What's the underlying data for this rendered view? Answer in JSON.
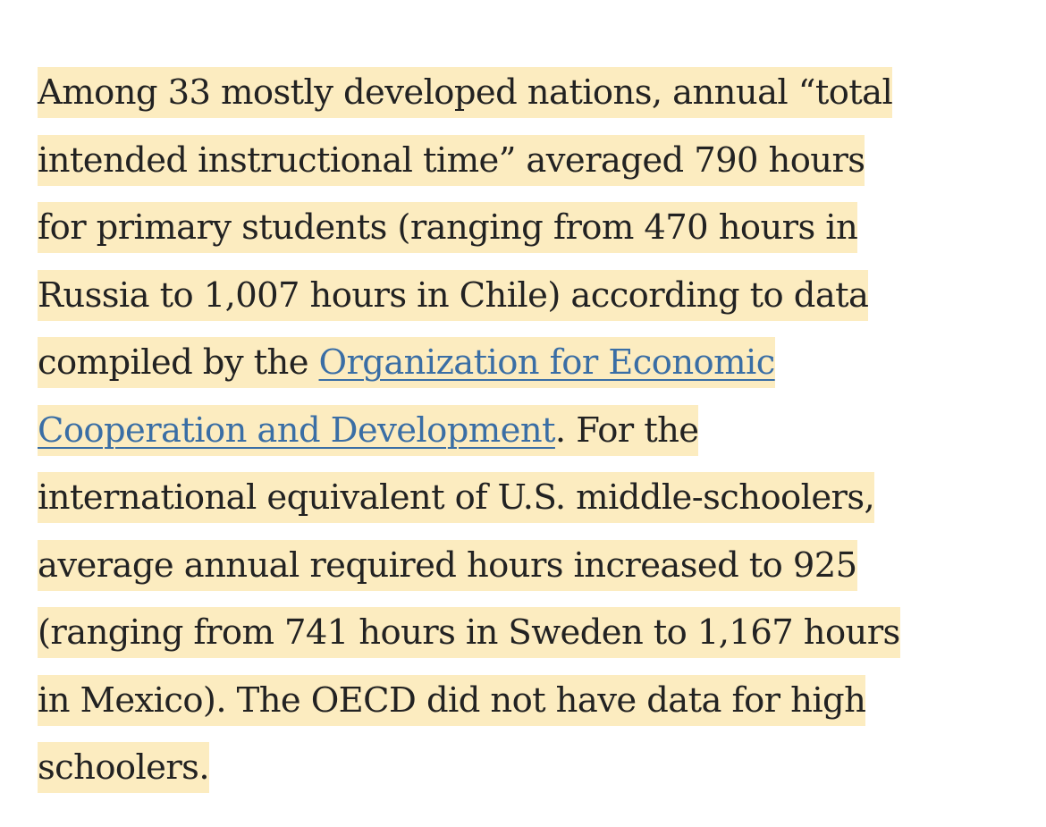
{
  "paragraph": {
    "lines": [
      "Among 33 mostly developed nations, annual “total",
      "intended instructional time” averaged 790 hours",
      "for primary students (ranging from 470 hours in",
      "Russia to 1,007 hours in Chile) according to data"
    ],
    "line5_before_link": "compiled by the ",
    "link_part1": "Organization for Economic",
    "link_part2": "Cooperation and Development",
    "line6_after_link": ". For the",
    "lines_after": [
      "international equivalent of U.S. middle-schoolers,",
      "average annual required hours increased to 925",
      "(ranging from 741 hours in Sweden to 1,167 hours",
      "in Mexico). The OECD did not have data for high",
      "schoolers."
    ]
  },
  "colors": {
    "highlight": "#fcecc0",
    "text": "#222222",
    "link": "#3a6ea5"
  }
}
